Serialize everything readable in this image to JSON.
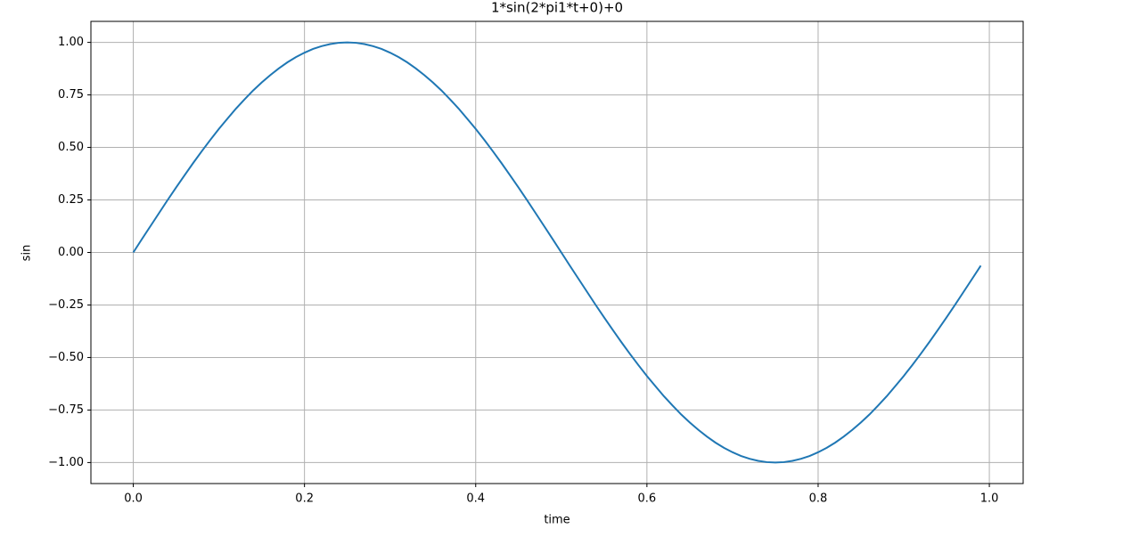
{
  "chart_data": {
    "type": "line",
    "title": "1*sin(2*pi1*t+0)+0",
    "xlabel": "time",
    "ylabel": "sin",
    "x": [
      0,
      0.01,
      0.02,
      0.03,
      0.04,
      0.05,
      0.06,
      0.07,
      0.08,
      0.09,
      0.1,
      0.11,
      0.12,
      0.13,
      0.14,
      0.15,
      0.16,
      0.17,
      0.18,
      0.19,
      0.2,
      0.21,
      0.22,
      0.23,
      0.24,
      0.25,
      0.26,
      0.27,
      0.28,
      0.29,
      0.3,
      0.31,
      0.32,
      0.33,
      0.34,
      0.35,
      0.36,
      0.37,
      0.38,
      0.39,
      0.4,
      0.41,
      0.42,
      0.43,
      0.44,
      0.45,
      0.46,
      0.47,
      0.48,
      0.49,
      0.5,
      0.51,
      0.52,
      0.53,
      0.54,
      0.55,
      0.56,
      0.57,
      0.58,
      0.59,
      0.6,
      0.61,
      0.62,
      0.63,
      0.64,
      0.65,
      0.66,
      0.67,
      0.68,
      0.69,
      0.7,
      0.71,
      0.72,
      0.73,
      0.74,
      0.75,
      0.76,
      0.77,
      0.78,
      0.79,
      0.8,
      0.81,
      0.82,
      0.83,
      0.84,
      0.85,
      0.86,
      0.87,
      0.88,
      0.89,
      0.9,
      0.91,
      0.92,
      0.93,
      0.94,
      0.95,
      0.96,
      0.97,
      0.98,
      0.99
    ],
    "series": [
      {
        "color": "#1f77b4",
        "values": [
          0,
          0.063,
          0.125,
          0.187,
          0.249,
          0.309,
          0.368,
          0.426,
          0.482,
          0.536,
          0.588,
          0.637,
          0.685,
          0.729,
          0.771,
          0.809,
          0.844,
          0.876,
          0.905,
          0.93,
          0.951,
          0.969,
          0.982,
          0.992,
          0.998,
          1,
          0.998,
          0.992,
          0.982,
          0.969,
          0.951,
          0.93,
          0.905,
          0.876,
          0.844,
          0.809,
          0.771,
          0.729,
          0.685,
          0.637,
          0.588,
          0.536,
          0.482,
          0.426,
          0.368,
          0.309,
          0.249,
          0.187,
          0.125,
          0.063,
          0,
          -0.063,
          -0.125,
          -0.187,
          -0.249,
          -0.309,
          -0.368,
          -0.426,
          -0.482,
          -0.536,
          -0.588,
          -0.637,
          -0.685,
          -0.729,
          -0.771,
          -0.809,
          -0.844,
          -0.876,
          -0.905,
          -0.93,
          -0.951,
          -0.969,
          -0.982,
          -0.992,
          -0.998,
          -1,
          -0.998,
          -0.992,
          -0.982,
          -0.969,
          -0.951,
          -0.93,
          -0.905,
          -0.876,
          -0.844,
          -0.809,
          -0.771,
          -0.729,
          -0.685,
          -0.637,
          -0.588,
          -0.536,
          -0.482,
          -0.426,
          -0.368,
          -0.309,
          -0.249,
          -0.187,
          -0.125,
          -0.063
        ]
      }
    ],
    "xlim": [
      -0.0495,
      1.0395
    ],
    "xticks": [
      {
        "value": 0,
        "label": "0.0"
      },
      0.2,
      0.4,
      0.6,
      0.8,
      {
        "value": 1,
        "label": "1.0"
      }
    ],
    "ylim": [
      -1.1,
      1.1
    ],
    "yticks": [
      {
        "value": -1,
        "label": "−1.00"
      },
      {
        "value": -0.75,
        "label": "−0.75"
      },
      {
        "value": -0.5,
        "label": "−0.50"
      },
      {
        "value": -0.25,
        "label": "−0.25"
      },
      {
        "value": 0,
        "label": "0.00"
      },
      0.25,
      {
        "value": 0.5,
        "label": "0.50"
      },
      0.75,
      {
        "value": 1,
        "label": "1.00"
      }
    ],
    "grid": true
  }
}
